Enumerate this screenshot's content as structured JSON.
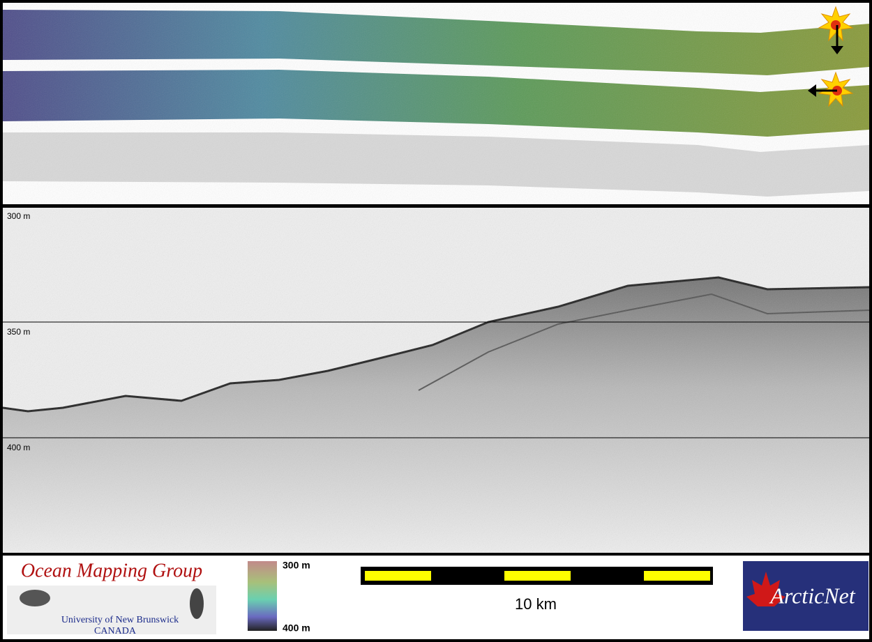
{
  "profile": {
    "depth_labels": [
      "300 m",
      "350 m",
      "400 m"
    ]
  },
  "legend": {
    "logo": {
      "title": "Ocean Mapping Group",
      "subtitle": "University of New Brunswick",
      "country": "CANADA"
    },
    "colorbar": {
      "top": "300 m",
      "bottom": "400 m"
    },
    "scale": "10 km",
    "partner": "ArcticNet"
  }
}
